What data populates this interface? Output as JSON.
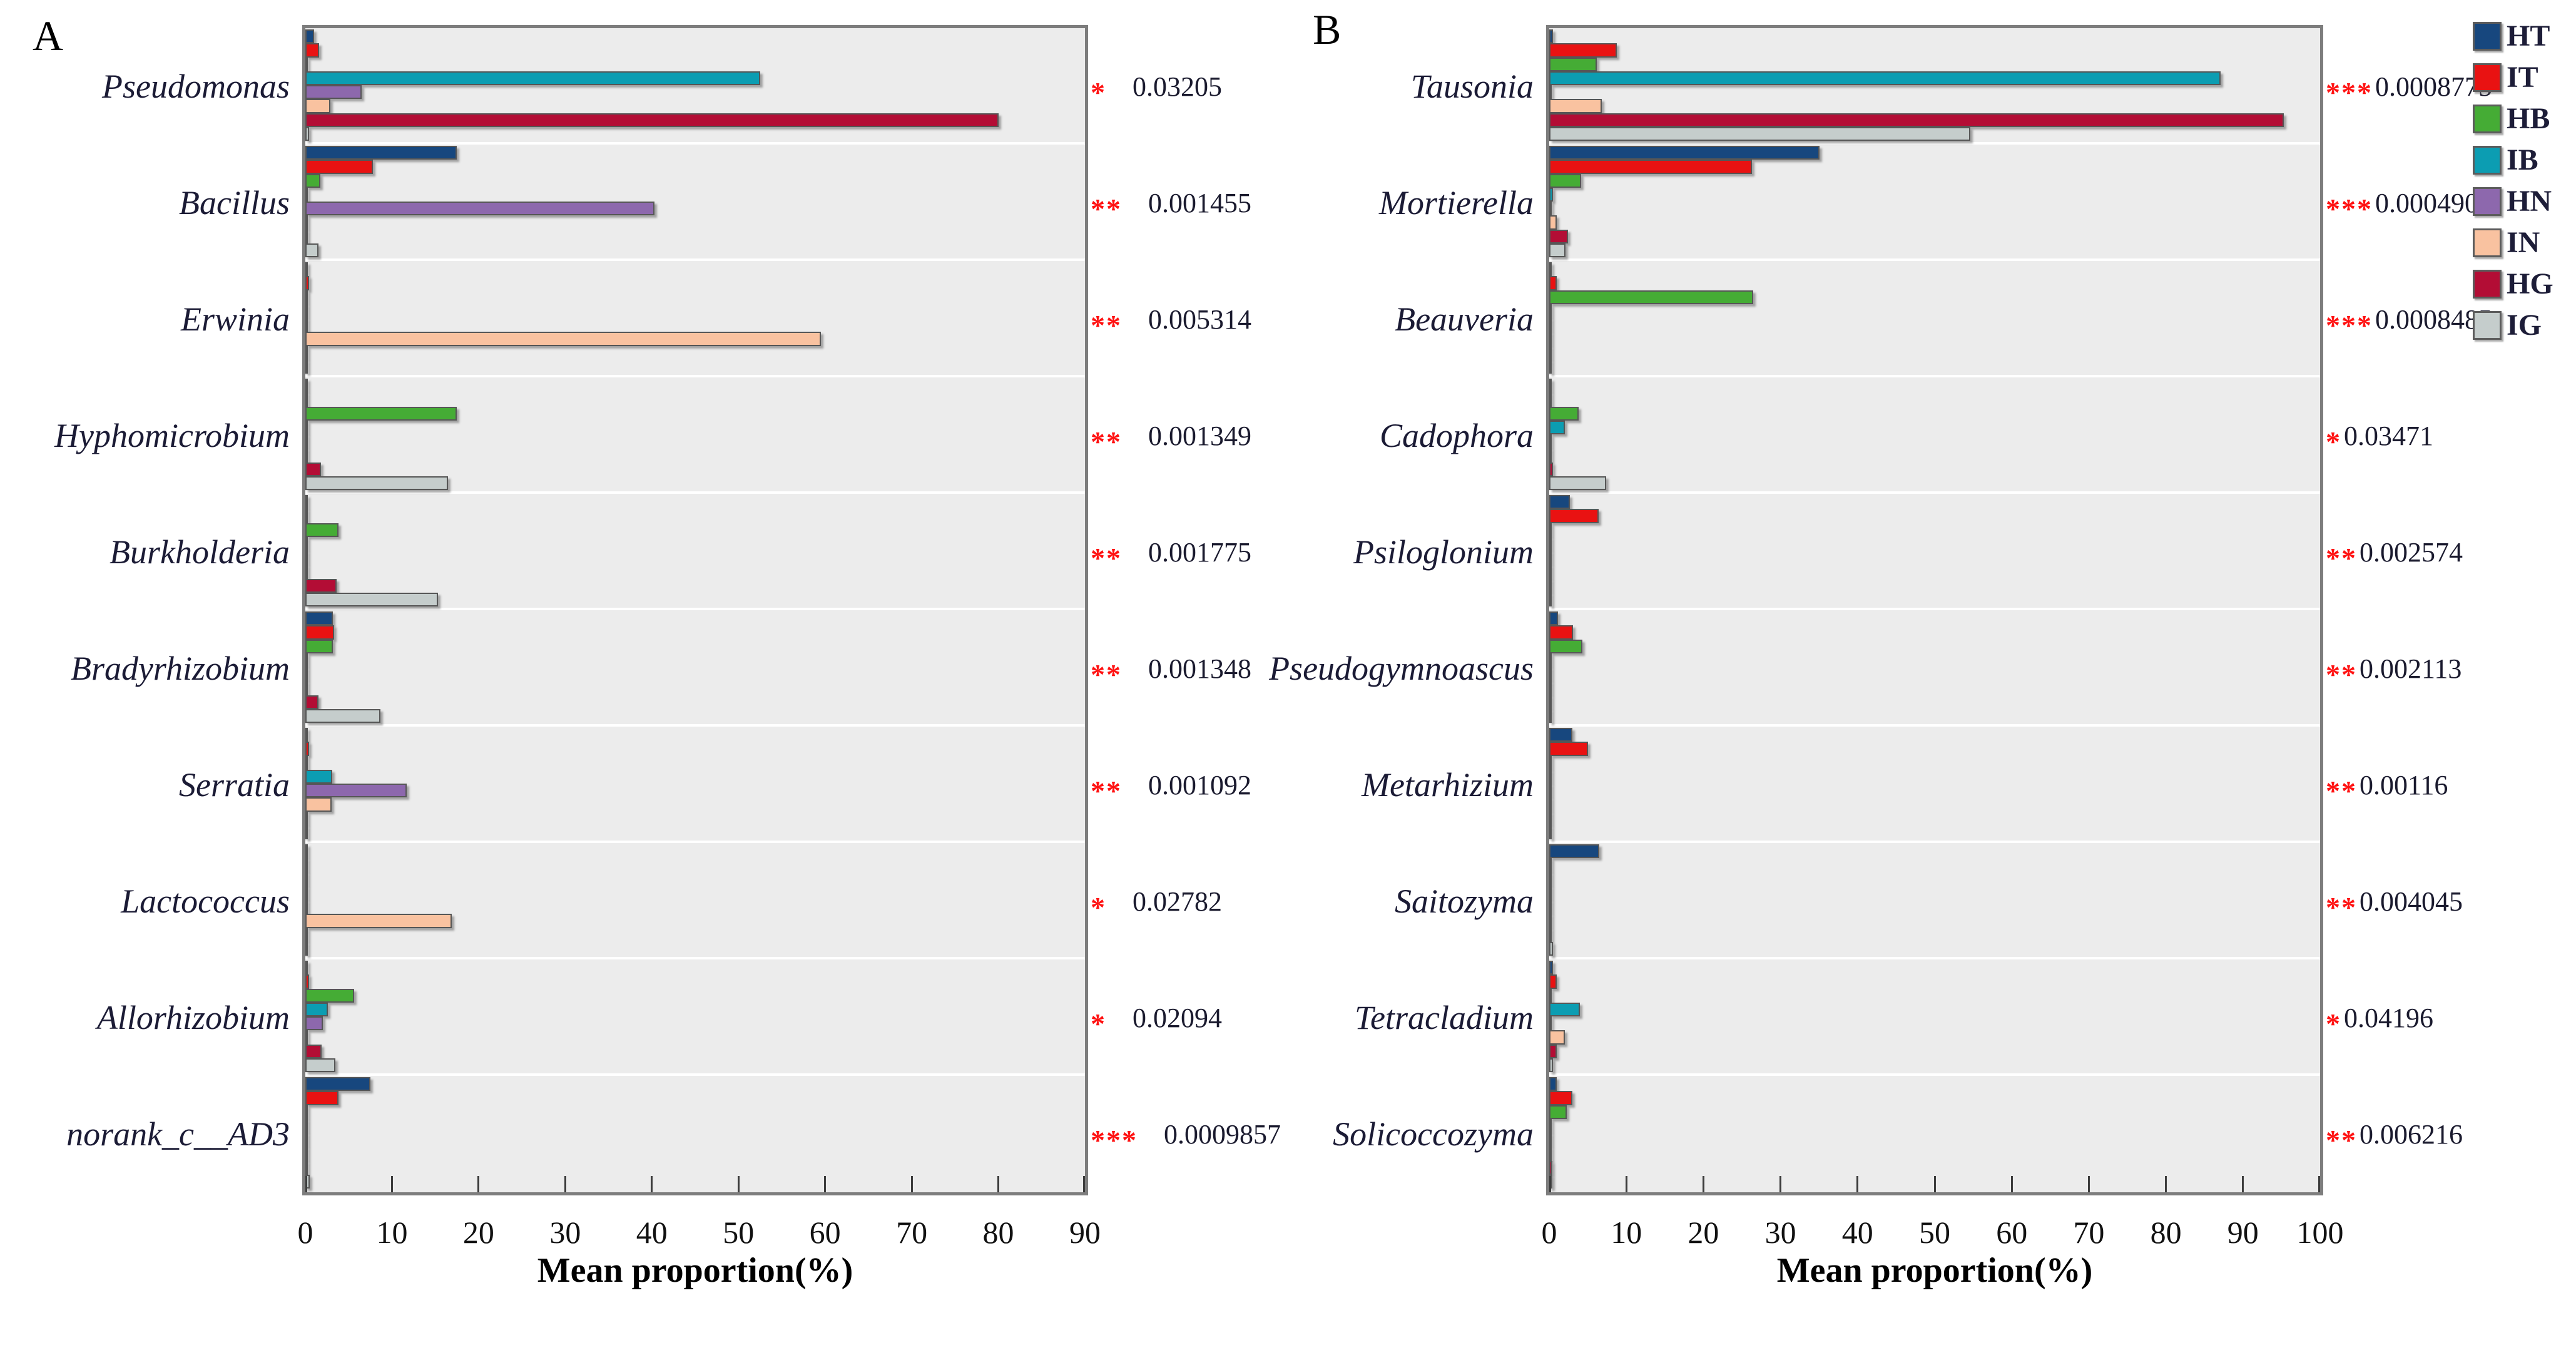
{
  "figure_title": "",
  "legend": {
    "items": [
      {
        "label": "HT",
        "color": "#17477E"
      },
      {
        "label": "IT",
        "color": "#E91212"
      },
      {
        "label": "HB",
        "color": "#45AC35"
      },
      {
        "label": "IB",
        "color": "#0C9DB2"
      },
      {
        "label": "HN",
        "color": "#8D68AD"
      },
      {
        "label": "IN",
        "color": "#F9C2A0"
      },
      {
        "label": "HG",
        "color": "#B30D35"
      },
      {
        "label": "IG",
        "color": "#C5CDCC"
      }
    ]
  },
  "chart_data": [
    {
      "type": "bar",
      "orientation": "horizontal",
      "panel_label": "A",
      "xlabel": "Mean proportion(%)",
      "xlim": [
        0,
        90
      ],
      "xticks": [
        0,
        10,
        20,
        30,
        40,
        50,
        60,
        70,
        80,
        90
      ],
      "grid": "group-bands",
      "legend_position": "top-right-outside",
      "categories": [
        "Pseudomonas",
        "Bacillus",
        "Erwinia",
        "Hyphomicrobium",
        "Burkholderia",
        "Bradyrhizobium",
        "Serratia",
        "Lactococcus",
        "Allorhizobium",
        "norank_c__AD3"
      ],
      "series": [
        {
          "name": "HT",
          "color": "#17477E",
          "values": [
            1.0,
            17.5,
            0.15,
            0.2,
            0.3,
            3.2,
            0.3,
            0.2,
            0.3,
            7.5
          ]
        },
        {
          "name": "IT",
          "color": "#E91212",
          "values": [
            1.6,
            7.8,
            0.4,
            0.3,
            0.3,
            3.3,
            0.4,
            0.3,
            0.4,
            3.8
          ]
        },
        {
          "name": "HB",
          "color": "#45AC35",
          "values": [
            0.3,
            1.7,
            0.1,
            17.5,
            3.8,
            3.2,
            0.1,
            0.1,
            5.6,
            0.15
          ]
        },
        {
          "name": "IB",
          "color": "#0C9DB2",
          "values": [
            52.5,
            0.3,
            0.1,
            0.1,
            0.1,
            0.15,
            3.1,
            0.1,
            2.6,
            0.3
          ]
        },
        {
          "name": "HN",
          "color": "#8D68AD",
          "values": [
            6.5,
            40.3,
            0.1,
            0.1,
            0.1,
            0.2,
            11.7,
            0.1,
            2.0,
            0.1
          ]
        },
        {
          "name": "IN",
          "color": "#F9C2A0",
          "values": [
            2.9,
            0.2,
            59.5,
            0.1,
            0.1,
            0.1,
            3.0,
            16.9,
            0.2,
            0.1
          ]
        },
        {
          "name": "HG",
          "color": "#B30D35",
          "values": [
            80.0,
            0.3,
            0.1,
            1.8,
            3.6,
            1.5,
            0.1,
            0.1,
            1.9,
            0.2
          ]
        },
        {
          "name": "IG",
          "color": "#C5CDCC",
          "values": [
            0.4,
            1.5,
            0.1,
            16.5,
            15.3,
            8.7,
            0.2,
            0.1,
            3.5,
            0.5
          ]
        }
      ],
      "significance": [
        "*",
        "**",
        "**",
        "**",
        "**",
        "**",
        "**",
        "*",
        "*",
        "***"
      ],
      "p_values": [
        "0.03205",
        "0.001455",
        "0.005314",
        "0.001349",
        "0.001775",
        "0.001348",
        "0.001092",
        "0.02782",
        "0.02094",
        "0.0009857"
      ]
    },
    {
      "type": "bar",
      "orientation": "horizontal",
      "panel_label": "B",
      "xlabel": "Mean proportion(%)",
      "xlim": [
        0,
        100
      ],
      "xticks": [
        0,
        10,
        20,
        30,
        40,
        50,
        60,
        70,
        80,
        90,
        100
      ],
      "grid": "group-bands",
      "legend_position": "top-right-outside",
      "categories": [
        "Tausonia",
        "Mortierella",
        "Beauveria",
        "Cadophora",
        "Psiloglonium",
        "Pseudogymnoascus",
        "Metarhizium",
        "Saitozyma",
        "Tetracladium",
        "Solicoccozyma"
      ],
      "series": [
        {
          "name": "HT",
          "color": "#17477E",
          "values": [
            0.5,
            35.1,
            0.2,
            0.3,
            2.7,
            1.1,
            3.0,
            6.5,
            0.5,
            1.0
          ]
        },
        {
          "name": "IT",
          "color": "#E91212",
          "values": [
            8.8,
            26.3,
            1.0,
            0.3,
            6.4,
            3.1,
            5.0,
            0.2,
            1.0,
            3.0
          ]
        },
        {
          "name": "HB",
          "color": "#45AC35",
          "values": [
            6.2,
            4.1,
            26.5,
            3.8,
            0.2,
            4.3,
            0.2,
            0.2,
            0.2,
            2.3
          ]
        },
        {
          "name": "IB",
          "color": "#0C9DB2",
          "values": [
            87.1,
            0.5,
            0.3,
            2.0,
            0.2,
            0.2,
            0.1,
            0.1,
            4.0,
            0.3
          ]
        },
        {
          "name": "HN",
          "color": "#8D68AD",
          "values": [
            0.3,
            0.1,
            0.2,
            0.1,
            0.1,
            0.1,
            0.1,
            0.1,
            0.1,
            0.1
          ]
        },
        {
          "name": "IN",
          "color": "#F9C2A0",
          "values": [
            6.8,
            1.0,
            0.2,
            0.3,
            0.2,
            0.2,
            0.1,
            0.3,
            2.0,
            0.3
          ]
        },
        {
          "name": "HG",
          "color": "#B30D35",
          "values": [
            95.3,
            2.4,
            0.3,
            0.5,
            0.2,
            0.2,
            0.2,
            0.2,
            1.0,
            0.4
          ]
        },
        {
          "name": "IG",
          "color": "#C5CDCC",
          "values": [
            54.6,
            2.1,
            0.3,
            7.4,
            0.3,
            0.3,
            0.3,
            0.5,
            0.5,
            0.4
          ]
        }
      ],
      "significance": [
        "***",
        "***",
        "***",
        "*",
        "**",
        "**",
        "**",
        "**",
        "*",
        "**"
      ],
      "p_values": [
        "0.0008775",
        "0.0004904",
        "0.0008485",
        "0.03471",
        "0.002574",
        "0.002113",
        "0.00116",
        "0.004045",
        "0.04196",
        "0.006216"
      ]
    }
  ]
}
